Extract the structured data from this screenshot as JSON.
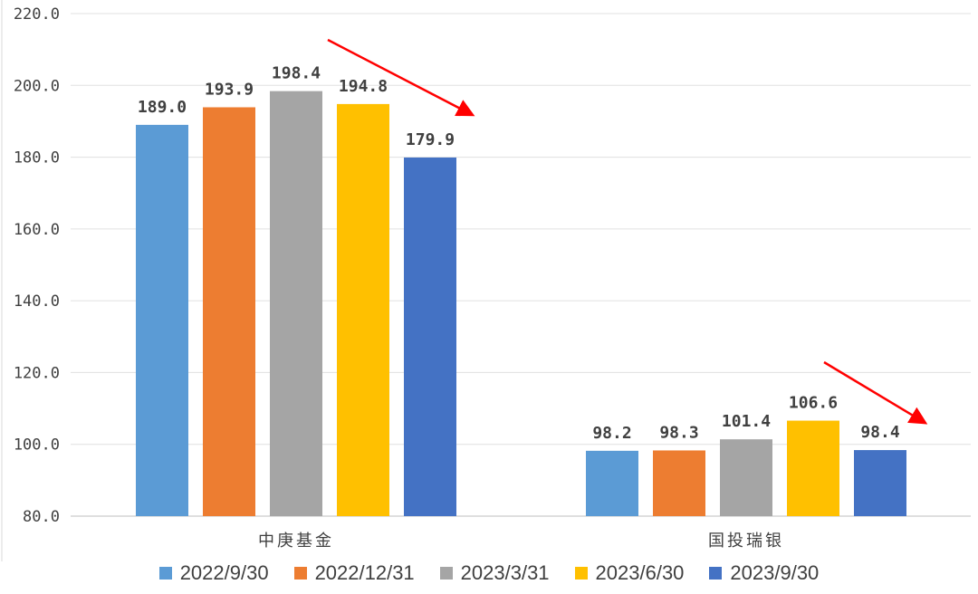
{
  "chart_data": {
    "type": "bar",
    "categories": [
      "中庚基金",
      "国投瑞银"
    ],
    "series": [
      {
        "name": "2022/9/30",
        "color": "#5B9BD5",
        "values": [
          189.0,
          98.2
        ],
        "labels": [
          "189.0",
          "98.2"
        ]
      },
      {
        "name": "2022/12/31",
        "color": "#ED7D31",
        "values": [
          193.9,
          98.3
        ],
        "labels": [
          "193.9",
          "98.3"
        ]
      },
      {
        "name": "2023/3/31",
        "color": "#A5A5A5",
        "values": [
          198.4,
          101.4
        ],
        "labels": [
          "198.4",
          "101.4"
        ]
      },
      {
        "name": "2023/6/30",
        "color": "#FFC000",
        "values": [
          194.8,
          106.6
        ],
        "labels": [
          "194.8",
          "106.6"
        ]
      },
      {
        "name": "2023/9/30",
        "color": "#4472C4",
        "values": [
          179.9,
          98.4
        ],
        "labels": [
          "179.9",
          "98.4"
        ]
      }
    ],
    "ylim": [
      80,
      220
    ],
    "yticks": [
      80,
      100,
      120,
      140,
      160,
      180,
      200,
      220
    ],
    "ytick_labels": [
      "80.0",
      "100.0",
      "120.0",
      "140.0",
      "160.0",
      "180.0",
      "200.0",
      "220.0"
    ],
    "title": "",
    "xlabel": "",
    "ylabel": "",
    "grid": true,
    "legend_position": "bottom",
    "annotations": [
      {
        "type": "arrow",
        "color": "#FF0000",
        "description": "downward trend arrow over 中庚基金"
      },
      {
        "type": "arrow",
        "color": "#FF0000",
        "description": "downward trend arrow over 国投瑞银"
      }
    ]
  }
}
